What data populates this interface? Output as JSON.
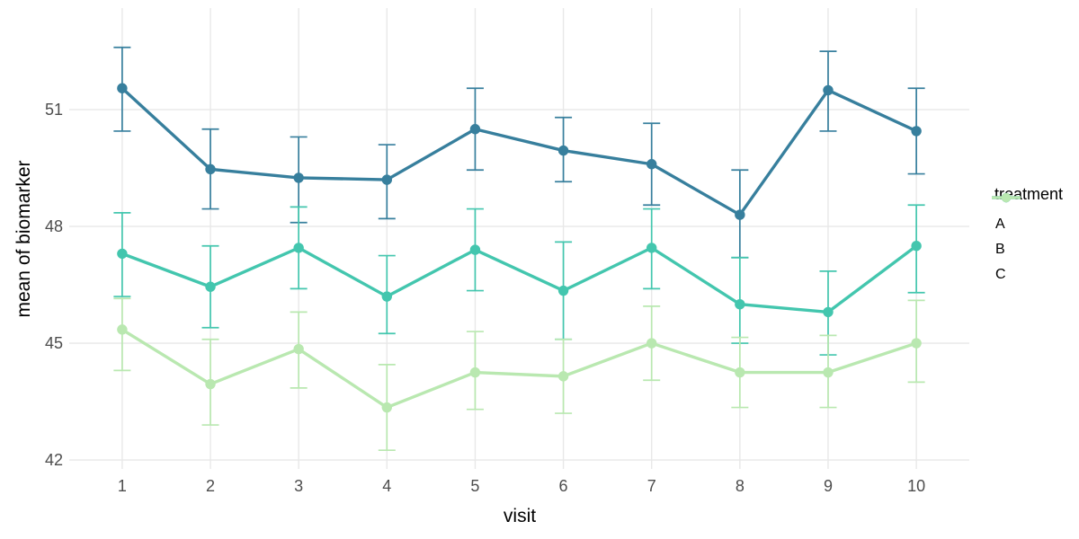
{
  "chart_data": {
    "type": "line",
    "title": "",
    "xlabel": "visit",
    "ylabel": "mean of biomarker",
    "x": [
      1,
      2,
      3,
      4,
      5,
      6,
      7,
      8,
      9,
      10
    ],
    "xticklabels": [
      "1",
      "2",
      "3",
      "4",
      "5",
      "6",
      "7",
      "8",
      "9",
      "10"
    ],
    "yticks": [
      42,
      45,
      48,
      51
    ],
    "yticklabels": [
      "42",
      "45",
      "48",
      "51"
    ],
    "ylim": [
      41.77,
      53.61
    ],
    "grid": true,
    "error_bars": true,
    "legend": {
      "title": "treatment",
      "position": "right",
      "entries": [
        "A",
        "B",
        "C"
      ]
    },
    "series": [
      {
        "name": "A",
        "color": "#377F9D",
        "values": [
          51.55,
          49.47,
          49.25,
          49.2,
          50.5,
          49.95,
          49.6,
          48.3,
          51.5,
          50.45
        ],
        "upper": [
          52.6,
          50.5,
          50.3,
          50.1,
          51.55,
          50.8,
          50.65,
          49.45,
          52.5,
          51.55
        ],
        "lower": [
          50.45,
          48.45,
          48.1,
          48.2,
          49.45,
          49.15,
          48.55,
          47.2,
          50.45,
          49.35
        ]
      },
      {
        "name": "B",
        "color": "#43C6AE",
        "values": [
          47.3,
          46.45,
          47.45,
          46.2,
          47.4,
          46.35,
          47.45,
          46.0,
          45.8,
          47.5
        ],
        "upper": [
          48.35,
          47.5,
          48.5,
          47.25,
          48.45,
          47.6,
          48.45,
          47.2,
          46.85,
          48.55
        ],
        "lower": [
          46.2,
          45.4,
          46.4,
          45.25,
          46.35,
          45.1,
          46.4,
          45.0,
          44.7,
          46.3
        ]
      },
      {
        "name": "C",
        "color": "#B9E8B0",
        "values": [
          45.35,
          43.95,
          44.85,
          43.35,
          44.25,
          44.15,
          45.0,
          44.25,
          44.25,
          45.0
        ],
        "upper": [
          46.15,
          45.1,
          45.8,
          44.45,
          45.3,
          45.1,
          45.95,
          45.15,
          45.2,
          46.1
        ],
        "lower": [
          44.3,
          42.9,
          43.85,
          42.25,
          43.3,
          43.2,
          44.05,
          43.35,
          43.35,
          44.0
        ]
      }
    ],
    "colors": {
      "background": "#ffffff",
      "grid": "#e8e8e8",
      "axis_text": "#4d4d4d",
      "axis_title": "#000000"
    }
  }
}
